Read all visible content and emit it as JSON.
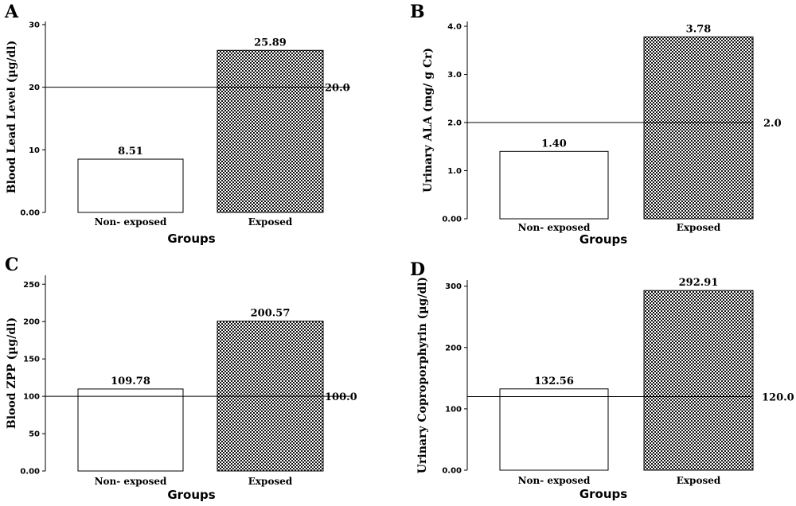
{
  "chart_data": [
    {
      "type": "bar",
      "panel": "A",
      "ylabel": "Blood Lead Level (µg/dl)",
      "xlabel": "Groups",
      "categories": [
        "Non- exposed",
        "Exposed"
      ],
      "values": [
        8.51,
        25.89
      ],
      "value_labels": [
        "8.51",
        "25.89"
      ],
      "ylim": [
        0,
        30.5
      ],
      "yticks": [
        0,
        10,
        20,
        30
      ],
      "ytick_labels": [
        "0.00",
        "10",
        "20",
        "30"
      ],
      "reference_line": {
        "value": 20.0,
        "label": "20.0"
      },
      "bar_styles": [
        "plain",
        "checkered"
      ]
    },
    {
      "type": "bar",
      "panel": "B",
      "ylabel": "Urinary ALA (mg/ g Cr)",
      "xlabel": "Groups",
      "categories": [
        "Non- exposed",
        "Exposed"
      ],
      "values": [
        1.4,
        3.78
      ],
      "value_labels": [
        "1.40",
        "3.78"
      ],
      "ylim": [
        0,
        4.1
      ],
      "yticks": [
        0,
        1,
        2,
        3,
        4
      ],
      "ytick_labels": [
        "0.00",
        "1.0",
        "2.0",
        "3.0",
        "4.0"
      ],
      "reference_line": {
        "value": 2.0,
        "label": "2.0"
      },
      "bar_styles": [
        "plain",
        "checkered"
      ]
    },
    {
      "type": "bar",
      "panel": "C",
      "ylabel": "Blood ZPP (µg/dl)",
      "xlabel": "Groups",
      "categories": [
        "Non- exposed",
        "Exposed"
      ],
      "values": [
        109.78,
        200.57
      ],
      "value_labels": [
        "109.78",
        "200.57"
      ],
      "ylim": [
        0,
        262
      ],
      "yticks": [
        0,
        50,
        100,
        150,
        200,
        250
      ],
      "ytick_labels": [
        "0.00",
        "50",
        "100",
        "150",
        "200",
        "250"
      ],
      "reference_line": {
        "value": 100.0,
        "label": "100.0"
      },
      "bar_styles": [
        "plain",
        "checkered"
      ]
    },
    {
      "type": "bar",
      "panel": "D",
      "ylabel": "Urinary Coproporphyrin (µg/dl)",
      "xlabel": "Groups",
      "categories": [
        "Non- exposed",
        "Exposed"
      ],
      "values": [
        132.56,
        292.91
      ],
      "value_labels": [
        "132.56",
        "292.91"
      ],
      "ylim": [
        0,
        310
      ],
      "yticks": [
        0,
        100,
        200,
        300
      ],
      "ytick_labels": [
        "0.00",
        "100",
        "200",
        "300"
      ],
      "reference_line": {
        "value": 120.0,
        "label": "120.0"
      },
      "bar_styles": [
        "plain",
        "checkered"
      ]
    }
  ]
}
